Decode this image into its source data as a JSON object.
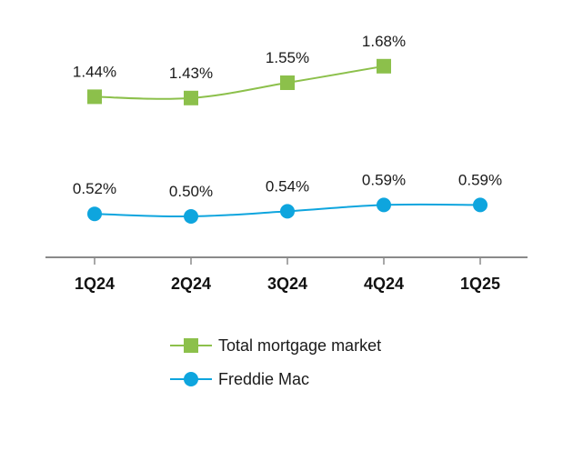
{
  "chart_data": {
    "type": "line",
    "title": "",
    "xlabel": "",
    "ylabel": "",
    "categories": [
      "1Q24",
      "2Q24",
      "3Q24",
      "4Q24",
      "1Q25"
    ],
    "ylim": [
      0.2,
      1.9
    ],
    "grid": false,
    "legend_position": "bottom",
    "series": [
      {
        "name": "Total mortgage market",
        "values": [
          1.44,
          1.43,
          1.55,
          1.68,
          null
        ],
        "labels": [
          "1.44%",
          "1.43%",
          "1.55%",
          "1.68%",
          ""
        ],
        "color": "#8cc04b",
        "marker": "square"
      },
      {
        "name": "Freddie Mac",
        "values": [
          0.52,
          0.5,
          0.54,
          0.59,
          0.59
        ],
        "labels": [
          "0.52%",
          "0.50%",
          "0.54%",
          "0.59%",
          "0.59%"
        ],
        "color": "#0ea5de",
        "marker": "circle"
      }
    ]
  }
}
